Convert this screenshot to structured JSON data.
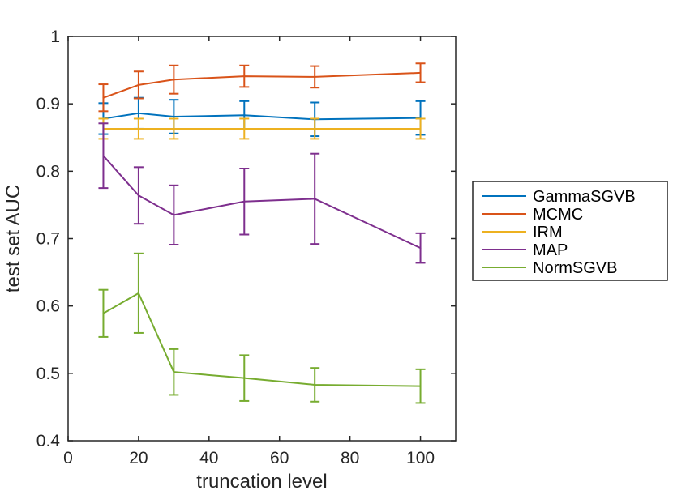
{
  "chart_data": {
    "type": "line",
    "xlabel": "truncation level",
    "ylabel": "test set AUC",
    "xlim": [
      0,
      110
    ],
    "ylim": [
      0.4,
      1.0
    ],
    "xticks": [
      "0",
      "20",
      "40",
      "60",
      "80",
      "100"
    ],
    "yticks": [
      "0.4",
      "0.5",
      "0.6",
      "0.7",
      "0.8",
      "0.9",
      "1"
    ],
    "grid": false,
    "legend_position": "outside-right",
    "series": [
      {
        "name": "GammaSGVB",
        "color": "#0072BD",
        "x": [
          10,
          20,
          30,
          50,
          70,
          100
        ],
        "y": [
          0.878,
          0.886,
          0.881,
          0.883,
          0.877,
          0.879
        ],
        "err": [
          0.023,
          0.023,
          0.025,
          0.021,
          0.025,
          0.025
        ]
      },
      {
        "name": "MCMC",
        "color": "#D95319",
        "x": [
          10,
          20,
          30,
          50,
          70,
          100
        ],
        "y": [
          0.909,
          0.928,
          0.936,
          0.941,
          0.94,
          0.946
        ],
        "err": [
          0.02,
          0.02,
          0.021,
          0.016,
          0.016,
          0.014
        ]
      },
      {
        "name": "IRM",
        "color": "#EDB120",
        "x": [
          10,
          20,
          30,
          50,
          70,
          100
        ],
        "y": [
          0.863,
          0.863,
          0.863,
          0.863,
          0.863,
          0.863
        ],
        "err": [
          0.015,
          0.015,
          0.015,
          0.015,
          0.015,
          0.015
        ]
      },
      {
        "name": "MAP",
        "color": "#7E2F8E",
        "x": [
          10,
          20,
          30,
          50,
          70,
          100
        ],
        "y": [
          0.823,
          0.764,
          0.735,
          0.755,
          0.759,
          0.686
        ],
        "err": [
          0.048,
          0.042,
          0.044,
          0.049,
          0.067,
          0.022
        ]
      },
      {
        "name": "NormSGVB",
        "color": "#77AC30",
        "x": [
          10,
          20,
          30,
          50,
          70,
          100
        ],
        "y": [
          0.589,
          0.619,
          0.502,
          0.493,
          0.483,
          0.481
        ],
        "err": [
          0.035,
          0.059,
          0.034,
          0.034,
          0.025,
          0.025
        ]
      }
    ]
  }
}
